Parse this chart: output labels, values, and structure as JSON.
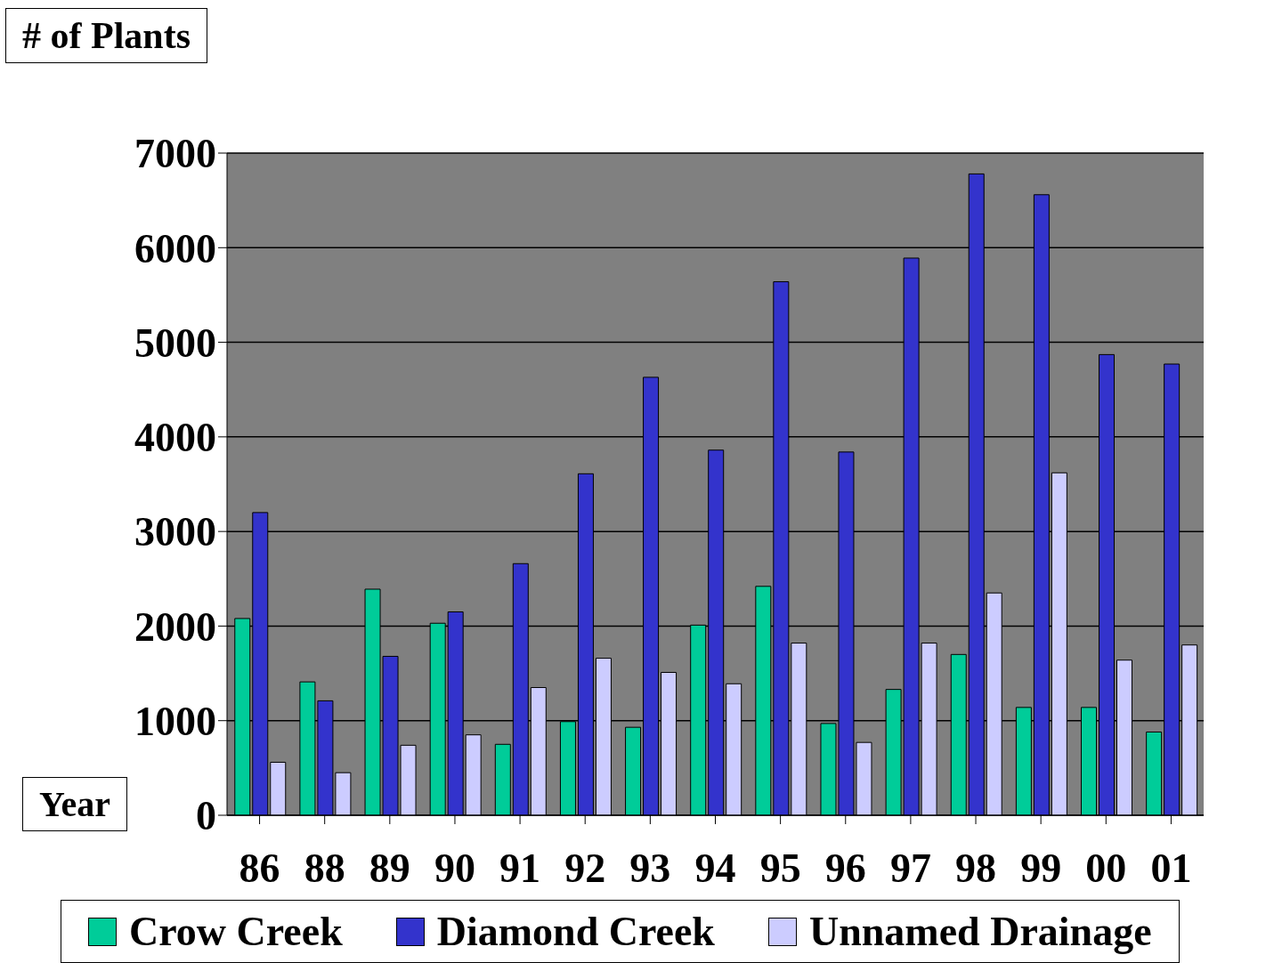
{
  "chart_data": {
    "type": "bar",
    "xlabel": "Year",
    "ylabel": "# of Plants",
    "categories": [
      "86",
      "88",
      "89",
      "90",
      "91",
      "92",
      "93",
      "94",
      "95",
      "96",
      "97",
      "98",
      "99",
      "00",
      "01"
    ],
    "series": [
      {
        "name": "Crow Creek",
        "color": "#00cc99",
        "values": [
          2080,
          1410,
          2390,
          2030,
          750,
          990,
          930,
          2010,
          2420,
          970,
          1330,
          1700,
          1140,
          1140,
          880
        ]
      },
      {
        "name": "Diamond Creek",
        "color": "#3333cc",
        "values": [
          3200,
          1210,
          1680,
          2150,
          2660,
          3610,
          4630,
          3860,
          5640,
          3840,
          5890,
          6780,
          6560,
          4870,
          4770
        ]
      },
      {
        "name": "Unnamed Drainage",
        "color": "#ccccff",
        "values": [
          560,
          450,
          740,
          850,
          1350,
          1660,
          1510,
          1390,
          1820,
          770,
          1820,
          2350,
          3620,
          1640,
          1800
        ]
      }
    ],
    "ylim": [
      0,
      7000
    ],
    "yticks": [
      0,
      1000,
      2000,
      3000,
      4000,
      5000,
      6000,
      7000
    ],
    "grid": "y",
    "legend": "bottom"
  }
}
